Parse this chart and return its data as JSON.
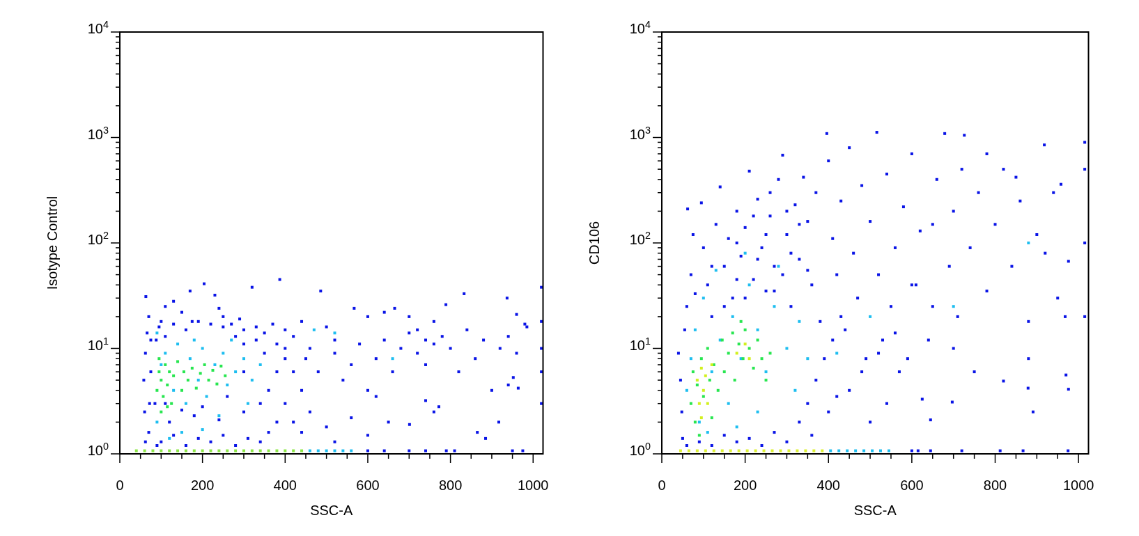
{
  "chart_data": [
    {
      "type": "scatter",
      "xlabel": "SSC-A",
      "ylabel": "Isotype Control",
      "xlim": [
        0,
        1024
      ],
      "ylim": [
        1,
        10000
      ],
      "log": "y",
      "marker": "square",
      "xticks": [
        0,
        {
          "value": 50,
          "label": null
        },
        {
          "value": 100,
          "label": null
        },
        {
          "value": 150,
          "label": null
        },
        200,
        {
          "value": 250,
          "label": null
        },
        {
          "value": 300,
          "label": null
        },
        {
          "value": 350,
          "label": null
        },
        400,
        {
          "value": 450,
          "label": null
        },
        {
          "value": 500,
          "label": null
        },
        {
          "value": 550,
          "label": null
        },
        600,
        {
          "value": 650,
          "label": null
        },
        {
          "value": 700,
          "label": null
        },
        {
          "value": 750,
          "label": null
        },
        800,
        {
          "value": 850,
          "label": null
        },
        {
          "value": 900,
          "label": null
        },
        {
          "value": 950,
          "label": null
        },
        1000
      ],
      "yticks": [
        {
          "value": 1,
          "label": "10$^{0}$"
        },
        {
          "value": 2,
          "label": null
        },
        {
          "value": 3,
          "label": null
        },
        {
          "value": 4,
          "label": null
        },
        {
          "value": 5,
          "label": null
        },
        {
          "value": 6,
          "label": null
        },
        {
          "value": 7,
          "label": null
        },
        {
          "value": 8,
          "label": null
        },
        {
          "value": 9,
          "label": null
        },
        {
          "value": 10,
          "label": "10$^{1}$"
        },
        {
          "value": 20,
          "label": null
        },
        {
          "value": 30,
          "label": null
        },
        {
          "value": 40,
          "label": null
        },
        {
          "value": 50,
          "label": null
        },
        {
          "value": 60,
          "label": null
        },
        {
          "value": 70,
          "label": null
        },
        {
          "value": 80,
          "label": null
        },
        {
          "value": 90,
          "label": null
        },
        {
          "value": 100,
          "label": "10$^{2}$"
        },
        {
          "value": 200,
          "label": null
        },
        {
          "value": 300,
          "label": null
        },
        {
          "value": 400,
          "label": null
        },
        {
          "value": 500,
          "label": null
        },
        {
          "value": 600,
          "label": null
        },
        {
          "value": 700,
          "label": null
        },
        {
          "value": 800,
          "label": null
        },
        {
          "value": 900,
          "label": null
        },
        {
          "value": 1000,
          "label": "10$^{3}$"
        },
        {
          "value": 2000,
          "label": null
        },
        {
          "value": 3000,
          "label": null
        },
        {
          "value": 4000,
          "label": null
        },
        {
          "value": 5000,
          "label": null
        },
        {
          "value": 6000,
          "label": null
        },
        {
          "value": 7000,
          "label": null
        },
        {
          "value": 8000,
          "label": null
        },
        {
          "value": 9000,
          "label": null
        },
        {
          "value": 10000,
          "label": "10$^{4}$"
        }
      ],
      "series": [
        {
          "color": "#0a14e6",
          "x": [
            63,
            62,
            60,
            58,
            62,
            66,
            70,
            90,
            85,
            88,
            95,
            100,
            110,
            130,
            150,
            170,
            175,
            204,
            230,
            240,
            250,
            270,
            290,
            300,
            320,
            387,
            486,
            330,
            350,
            370,
            400,
            420,
            440,
            460,
            500,
            520,
            567,
            600,
            640,
            665,
            700,
            720,
            740,
            760,
            789,
            833,
            937,
            960,
            985,
            1020,
            1020,
            1020,
            1020,
            1020,
            400,
            420,
            440,
            460,
            500,
            520,
            560,
            600,
            620,
            650,
            701,
            740,
            760,
            772,
            865,
            885,
            917,
            940,
            952,
            964,
            450,
            480,
            520,
            540,
            560,
            580,
            600,
            620,
            640,
            660,
            680,
            700,
            720,
            740,
            760,
            780,
            800,
            820,
            840,
            860,
            880,
            900,
            920,
            940,
            960,
            980,
            100,
            130,
            160,
            190,
            220,
            250,
            280,
            310,
            340,
            360,
            380,
            120,
            180,
            240,
            300,
            340,
            360,
            380,
            400,
            350,
            330,
            300,
            280,
            250,
            220,
            190,
            160,
            130,
            110,
            75,
            75,
            72,
            70,
            380,
            400,
            420,
            440,
            300,
            260,
            200,
            150,
            110
          ],
          "values": [
            31,
            1.3,
            2.5,
            5,
            9,
            14,
            20,
            1.2,
            3,
            12,
            16,
            18,
            25,
            28,
            22,
            35,
            18,
            41,
            32,
            24,
            20,
            17,
            19,
            15,
            38,
            45,
            35,
            16,
            14,
            17,
            15,
            13,
            18,
            10,
            16,
            12,
            24,
            20,
            22,
            24,
            20,
            15,
            12,
            18,
            26,
            33,
            30,
            21,
            16,
            3,
            6,
            10,
            18,
            38,
            3,
            2,
            1.6,
            2.5,
            1.8,
            1.3,
            2.2,
            1.5,
            3.5,
            2,
            1.9,
            3.2,
            2.5,
            2.8,
            1.6,
            1.4,
            2,
            4.5,
            5.3,
            4.2,
            8,
            6,
            9,
            5,
            7,
            11,
            4,
            8,
            12,
            6,
            10,
            14,
            9,
            7,
            11,
            13,
            10,
            6,
            15,
            8,
            12,
            4,
            10,
            13,
            9,
            17,
            1.3,
            1.5,
            1.2,
            1.4,
            1.3,
            1.5,
            1.2,
            1.4,
            1.3,
            1.6,
            2,
            2,
            2.3,
            2.1,
            2.5,
            3,
            4,
            6,
            8,
            9,
            12,
            11,
            13,
            16,
            17,
            18,
            15,
            17,
            13,
            12,
            6,
            3,
            1.6,
            11,
            10,
            6,
            4,
            6,
            3.5,
            2.8,
            2.6,
            3
          ]
        },
        {
          "color": "#1ebef0",
          "x": [
            90,
            100,
            110,
            130,
            140,
            160,
            170,
            190,
            200,
            210,
            230,
            250,
            260,
            280,
            300,
            310,
            150,
            120,
            200,
            240,
            320,
            340,
            180,
            90,
            270,
            470,
            520,
            660
          ],
          "values": [
            2,
            7,
            9,
            4,
            11,
            3,
            8,
            5,
            10,
            3.5,
            7,
            9,
            4.5,
            6,
            8,
            3,
            1.6,
            1.4,
            1.7,
            2.3,
            5,
            7,
            12,
            14,
            12,
            15,
            14,
            8
          ]
        },
        {
          "color": "#28e650",
          "x": [
            90,
            95,
            100,
            105,
            110,
            115,
            120,
            125,
            130,
            140,
            150,
            155,
            165,
            175,
            185,
            195,
            205,
            215,
            225,
            235,
            245,
            255,
            100,
            115,
            95
          ],
          "values": [
            4,
            6,
            5,
            3.5,
            7,
            4.5,
            6,
            3,
            5.5,
            7.5,
            4,
            6,
            5,
            6.5,
            4.2,
            5.8,
            7,
            5,
            6.2,
            4.6,
            6.8,
            5.5,
            2.5,
            2.8,
            8
          ]
        },
        {
          "x": [
            40,
            60,
            80,
            100,
            120,
            140,
            160,
            180,
            200,
            220,
            240,
            260,
            280,
            300,
            320,
            340,
            360,
            380,
            400,
            420,
            440,
            460,
            480,
            500,
            520,
            540,
            560,
            600,
            640,
            700,
            740,
            790,
            810,
            950,
            975
          ],
          "values": [
            1.07,
            1.07,
            1.07,
            1.07,
            1.07,
            1.07,
            1.07,
            1.07,
            1.07,
            1.07,
            1.07,
            1.07,
            1.07,
            1.07,
            1.07,
            1.07,
            1.07,
            1.07,
            1.07,
            1.07,
            1.07,
            1.07,
            1.07,
            1.07,
            1.07,
            1.07,
            1.07,
            1.07,
            1.07,
            1.07,
            1.07,
            1.07,
            1.07,
            1.07,
            1.07
          ],
          "colors": [
            "#8ce646",
            "#8ce646",
            "#8ce646",
            "#8ce646",
            "#8ce646",
            "#8ce646",
            "#8ce646",
            "#8ce646",
            "#8ce646",
            "#8ce646",
            "#8ce646",
            "#8ce646",
            "#8ce646",
            "#8ce646",
            "#8ce646",
            "#8ce646",
            "#8ce646",
            "#8ce646",
            "#8ce646",
            "#8ce646",
            "#8ce646",
            "#1ebef0",
            "#1ebef0",
            "#1ebef0",
            "#1ebef0",
            "#1ebef0",
            "#1ebef0",
            "#0a14e6",
            "#0a14e6",
            "#0a14e6",
            "#0a14e6",
            "#0a14e6",
            "#0a14e6",
            "#0a14e6",
            "#0a14e6"
          ]
        }
      ]
    },
    {
      "type": "scatter",
      "xlabel": "SSC-A",
      "ylabel": "CD106",
      "xlim": [
        0,
        1024
      ],
      "ylim": [
        1,
        10000
      ],
      "log": "y",
      "marker": "square",
      "xticks": [
        0,
        {
          "value": 50,
          "label": null
        },
        {
          "value": 100,
          "label": null
        },
        {
          "value": 150,
          "label": null
        },
        200,
        {
          "value": 250,
          "label": null
        },
        {
          "value": 300,
          "label": null
        },
        {
          "value": 350,
          "label": null
        },
        400,
        {
          "value": 450,
          "label": null
        },
        {
          "value": 500,
          "label": null
        },
        {
          "value": 550,
          "label": null
        },
        600,
        {
          "value": 650,
          "label": null
        },
        {
          "value": 700,
          "label": null
        },
        {
          "value": 750,
          "label": null
        },
        800,
        {
          "value": 850,
          "label": null
        },
        {
          "value": 900,
          "label": null
        },
        {
          "value": 950,
          "label": null
        },
        1000
      ],
      "yticks": [
        {
          "value": 1,
          "label": "10$^{0}$"
        },
        {
          "value": 2,
          "label": null
        },
        {
          "value": 3,
          "label": null
        },
        {
          "value": 4,
          "label": null
        },
        {
          "value": 5,
          "label": null
        },
        {
          "value": 6,
          "label": null
        },
        {
          "value": 7,
          "label": null
        },
        {
          "value": 8,
          "label": null
        },
        {
          "value": 9,
          "label": null
        },
        {
          "value": 10,
          "label": "10$^{1}$"
        },
        {
          "value": 20,
          "label": null
        },
        {
          "value": 30,
          "label": null
        },
        {
          "value": 40,
          "label": null
        },
        {
          "value": 50,
          "label": null
        },
        {
          "value": 60,
          "label": null
        },
        {
          "value": 70,
          "label": null
        },
        {
          "value": 80,
          "label": null
        },
        {
          "value": 90,
          "label": null
        },
        {
          "value": 100,
          "label": "10$^{2}$"
        },
        {
          "value": 200,
          "label": null
        },
        {
          "value": 300,
          "label": null
        },
        {
          "value": 400,
          "label": null
        },
        {
          "value": 500,
          "label": null
        },
        {
          "value": 600,
          "label": null
        },
        {
          "value": 700,
          "label": null
        },
        {
          "value": 800,
          "label": null
        },
        {
          "value": 900,
          "label": null
        },
        {
          "value": 1000,
          "label": "10$^{3}$"
        },
        {
          "value": 2000,
          "label": null
        },
        {
          "value": 3000,
          "label": null
        },
        {
          "value": 4000,
          "label": null
        },
        {
          "value": 5000,
          "label": null
        },
        {
          "value": 6000,
          "label": null
        },
        {
          "value": 7000,
          "label": null
        },
        {
          "value": 8000,
          "label": null
        },
        {
          "value": 9000,
          "label": null
        },
        {
          "value": 10000,
          "label": "10$^{4}$"
        }
      ],
      "series": [
        {
          "color": "#0a14e6",
          "x": [
            40,
            45,
            48,
            50,
            55,
            60,
            62,
            70,
            75,
            80,
            95,
            100,
            110,
            120,
            130,
            140,
            150,
            160,
            170,
            180,
            190,
            200,
            210,
            220,
            230,
            240,
            250,
            260,
            270,
            280,
            290,
            300,
            310,
            320,
            330,
            340,
            350,
            360,
            370,
            380,
            396,
            400,
            410,
            420,
            430,
            440,
            450,
            460,
            470,
            480,
            490,
            500,
            516,
            520,
            530,
            540,
            550,
            560,
            570,
            580,
            600,
            610,
            620,
            625,
            645,
            640,
            660,
            679,
            690,
            697,
            700,
            710,
            726,
            740,
            760,
            780,
            800,
            820,
            820,
            840,
            860,
            879,
            891,
            880,
            900,
            918,
            940,
            958,
            968,
            970,
            976,
            976,
            1015,
            1015,
            1015,
            1015,
            60,
            90,
            120,
            150,
            180,
            210,
            240,
            270,
            300,
            330,
            350,
            370,
            390,
            410,
            430,
            360,
            400,
            450,
            480,
            520,
            560,
            420,
            500,
            540,
            590,
            650,
            700,
            750,
            600,
            650,
            720,
            780,
            850,
            920,
            950,
            880,
            120,
            150,
            180,
            200,
            230,
            250,
            270,
            290,
            310,
            330,
            350,
            260,
            300,
            220,
            180
          ],
          "values": [
            9,
            5,
            2.5,
            1.4,
            15,
            25,
            210,
            50,
            120,
            33,
            240,
            90,
            40,
            20,
            150,
            340,
            60,
            110,
            30,
            200,
            75,
            140,
            480,
            45,
            260,
            90,
            35,
            180,
            60,
            400,
            680,
            120,
            25,
            230,
            70,
            420,
            160,
            40,
            300,
            18,
            1090,
            600,
            110,
            50,
            250,
            15,
            800,
            80,
            30,
            350,
            8,
            160,
            1120,
            50,
            12,
            450,
            25,
            90,
            6,
            220,
            700,
            40,
            130,
            3.3,
            2.1,
            12,
            400,
            1090,
            60,
            3.1,
            200,
            20,
            1050,
            90,
            300,
            35,
            150,
            4.9,
            500,
            60,
            250,
            4.2,
            2.5,
            18,
            120,
            850,
            300,
            360,
            20,
            5.6,
            67,
            4.1,
            20,
            100,
            500,
            900,
            1.2,
            1.3,
            1.2,
            1.5,
            1.3,
            1.4,
            1.2,
            1.6,
            1.3,
            2,
            3,
            5,
            8,
            12,
            20,
            1.5,
            2.5,
            4,
            6,
            9,
            14,
            3.5,
            2,
            3,
            8,
            25,
            10,
            6,
            40,
            150,
            500,
            700,
            420,
            80,
            30,
            8,
            60,
            25,
            45,
            30,
            70,
            120,
            35,
            50,
            80,
            150,
            55,
            300,
            200,
            180,
            100
          ]
        },
        {
          "color": "#1ebef0",
          "x": [
            60,
            70,
            80,
            90,
            100,
            120,
            140,
            160,
            170,
            190,
            210,
            230,
            250,
            270,
            300,
            320,
            330,
            280,
            200,
            350,
            110,
            180,
            230,
            420,
            500,
            700,
            880,
            130
          ],
          "values": [
            4,
            8,
            15,
            2,
            30,
            6,
            12,
            3,
            20,
            8,
            40,
            15,
            6,
            25,
            10,
            4,
            18,
            60,
            80,
            8,
            1.6,
            1.8,
            2.5,
            9,
            20,
            25,
            100,
            55
          ]
        },
        {
          "color": "#28e650",
          "x": [
            70,
            75,
            80,
            85,
            95,
            100,
            110,
            115,
            125,
            135,
            145,
            150,
            160,
            170,
            175,
            185,
            195,
            200,
            210,
            220,
            230,
            240,
            250,
            260,
            90,
            120,
            190
          ],
          "values": [
            3,
            6,
            2,
            4.5,
            8,
            3.5,
            10,
            5,
            7,
            4,
            12,
            6,
            9,
            14,
            5,
            11,
            8,
            15,
            10,
            6.5,
            12,
            8,
            5,
            9,
            1.5,
            2.2,
            18
          ]
        },
        {
          "color": "#d2f01e",
          "x": [
            85,
            90,
            95,
            100,
            105,
            110,
            120,
            180,
            200,
            210,
            95
          ],
          "values": [
            5,
            3,
            6.5,
            4,
            5.5,
            3,
            7,
            9,
            11,
            8,
            2.2
          ]
        },
        {
          "x": [
            45,
            65,
            85,
            105,
            125,
            145,
            165,
            185,
            205,
            225,
            245,
            265,
            285,
            305,
            325,
            345,
            365,
            385,
            405,
            425,
            445,
            465,
            485,
            505,
            525,
            545,
            600,
            615,
            645,
            720,
            812,
            867,
            975
          ],
          "values": [
            1.07,
            1.07,
            1.07,
            1.07,
            1.07,
            1.07,
            1.07,
            1.07,
            1.07,
            1.07,
            1.07,
            1.07,
            1.07,
            1.07,
            1.07,
            1.07,
            1.07,
            1.07,
            1.07,
            1.07,
            1.07,
            1.07,
            1.07,
            1.07,
            1.07,
            1.07,
            1.07,
            1.07,
            1.07,
            1.07,
            1.07,
            1.07,
            1.07
          ],
          "colors": [
            "#dcf032",
            "#dcf032",
            "#dcf032",
            "#dcf032",
            "#dcf032",
            "#dcf032",
            "#dcf032",
            "#dcf032",
            "#dcf032",
            "#dcf032",
            "#dcf032",
            "#dcf032",
            "#dcf032",
            "#dcf032",
            "#dcf032",
            "#dcf032",
            "#dcf032",
            "#dcf032",
            "#1ebef0",
            "#1ebef0",
            "#1ebef0",
            "#1ebef0",
            "#1ebef0",
            "#1ebef0",
            "#1ebef0",
            "#1ebef0",
            "#0a14e6",
            "#0a14e6",
            "#0a14e6",
            "#0a14e6",
            "#0a14e6",
            "#0a14e6",
            "#0a14e6"
          ]
        }
      ]
    }
  ]
}
